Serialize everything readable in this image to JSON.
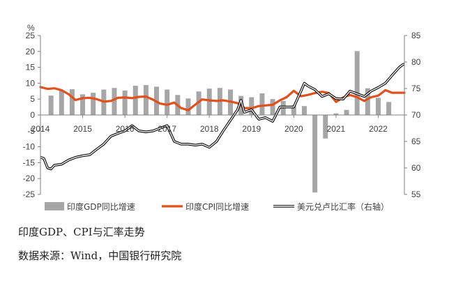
{
  "chart_data": {
    "type": "bar+line",
    "unit_left": "%",
    "left_axis": {
      "min": -25,
      "max": 25,
      "step": 5
    },
    "right_axis": {
      "min": 55,
      "max": 85,
      "step": 5
    },
    "x_range": [
      2014.0,
      2022.62
    ],
    "x_labels": [
      "2014",
      "2015",
      "2016",
      "2017",
      "2018",
      "2019",
      "2020",
      "2021",
      "2022"
    ],
    "grid": false,
    "legend_position": "bottom",
    "series": [
      {
        "name": "印度GDP同比增速",
        "kind": "bar",
        "axis": "left",
        "color": "#a6a6a6",
        "x": [
          2014.25,
          2014.5,
          2014.75,
          2015.0,
          2015.25,
          2015.5,
          2015.75,
          2016.0,
          2016.25,
          2016.5,
          2016.75,
          2017.0,
          2017.25,
          2017.5,
          2017.75,
          2018.0,
          2018.25,
          2018.5,
          2018.75,
          2019.0,
          2019.25,
          2019.5,
          2019.75,
          2020.0,
          2020.25,
          2020.5,
          2020.75,
          2021.0,
          2021.25,
          2021.5,
          2021.75,
          2022.0,
          2022.25
        ],
        "values": [
          6.1,
          7.8,
          8.1,
          6.5,
          7.0,
          8.0,
          8.5,
          7.7,
          9.2,
          9.4,
          8.9,
          8.0,
          6.3,
          5.2,
          7.4,
          8.3,
          8.5,
          8.0,
          6.0,
          5.6,
          6.8,
          5.0,
          4.4,
          3.0,
          2.8,
          -24.4,
          -7.4,
          0.5,
          1.6,
          20.1,
          8.4,
          5.4,
          4.1
        ]
      },
      {
        "name": "印度CPI同比增速",
        "kind": "line",
        "axis": "left",
        "color": "#e2501d",
        "x": [
          2014.0,
          2014.17,
          2014.33,
          2014.5,
          2014.67,
          2014.83,
          2015.0,
          2015.17,
          2015.33,
          2015.5,
          2015.67,
          2015.83,
          2016.0,
          2016.17,
          2016.33,
          2016.5,
          2016.67,
          2016.83,
          2017.0,
          2017.17,
          2017.33,
          2017.5,
          2017.67,
          2017.83,
          2018.0,
          2018.17,
          2018.33,
          2018.5,
          2018.67,
          2018.83,
          2019.0,
          2019.17,
          2019.33,
          2019.5,
          2019.67,
          2019.83,
          2020.0,
          2020.17,
          2020.33,
          2020.5,
          2020.67,
          2020.83,
          2021.0,
          2021.17,
          2021.33,
          2021.5,
          2021.67,
          2021.83,
          2022.0,
          2022.17,
          2022.33,
          2022.5,
          2022.62
        ],
        "values": [
          8.8,
          8.2,
          8.4,
          7.8,
          6.5,
          4.7,
          5.3,
          5.4,
          5.0,
          4.2,
          4.4,
          5.4,
          5.5,
          5.3,
          5.7,
          5.8,
          4.8,
          3.6,
          3.2,
          3.9,
          2.2,
          1.5,
          3.3,
          4.9,
          4.6,
          4.4,
          4.6,
          4.2,
          3.7,
          2.2,
          2.1,
          2.8,
          3.0,
          3.2,
          4.6,
          5.6,
          7.6,
          5.9,
          6.3,
          6.9,
          7.3,
          6.9,
          4.1,
          5.5,
          6.3,
          5.6,
          4.4,
          5.6,
          6.1,
          7.8,
          7.0,
          7.0,
          7.0
        ]
      },
      {
        "name": "美元兑卢比汇率（右轴）",
        "kind": "line",
        "axis": "right",
        "color": "#000000",
        "x": [
          2014.0,
          2014.08,
          2014.17,
          2014.25,
          2014.33,
          2014.5,
          2014.67,
          2014.83,
          2015.0,
          2015.17,
          2015.33,
          2015.5,
          2015.67,
          2015.83,
          2016.0,
          2016.17,
          2016.33,
          2016.5,
          2016.67,
          2016.83,
          2017.0,
          2017.17,
          2017.33,
          2017.5,
          2017.67,
          2017.83,
          2018.0,
          2018.17,
          2018.33,
          2018.5,
          2018.67,
          2018.75,
          2018.83,
          2019.0,
          2019.17,
          2019.33,
          2019.5,
          2019.67,
          2019.83,
          2020.0,
          2020.17,
          2020.25,
          2020.33,
          2020.5,
          2020.67,
          2020.83,
          2021.0,
          2021.17,
          2021.33,
          2021.5,
          2021.67,
          2021.83,
          2022.0,
          2022.17,
          2022.33,
          2022.5,
          2022.58,
          2022.62
        ],
        "values": [
          62.0,
          61.8,
          60.0,
          59.8,
          60.5,
          60.7,
          61.5,
          62.0,
          62.3,
          62.5,
          63.5,
          64.5,
          66.0,
          66.5,
          67.0,
          68.0,
          67.0,
          66.8,
          67.0,
          67.5,
          68.0,
          65.0,
          64.5,
          64.5,
          64.3,
          64.5,
          63.9,
          65.0,
          67.0,
          69.0,
          71.0,
          72.8,
          70.5,
          71.0,
          69.2,
          69.5,
          68.8,
          71.5,
          71.5,
          71.5,
          74.5,
          76.0,
          75.5,
          74.8,
          73.5,
          74.0,
          73.1,
          73.0,
          74.5,
          74.0,
          73.5,
          74.5,
          75.2,
          76.0,
          77.5,
          79.0,
          79.5,
          79.6
        ]
      }
    ]
  },
  "caption": {
    "title": "印度GDP、CPI与汇率走势",
    "source": "数据来源：Wind，中国银行研究院"
  }
}
